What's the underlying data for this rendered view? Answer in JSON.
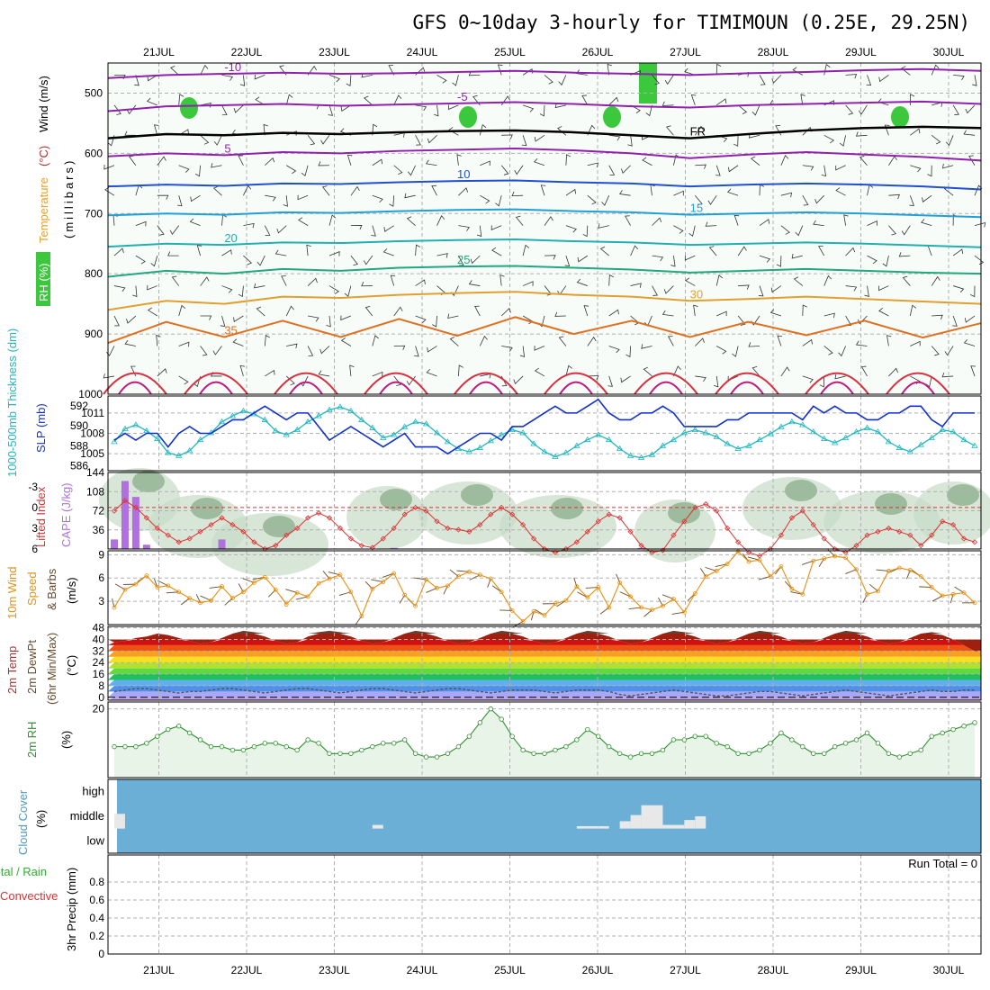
{
  "title": "GFS 0~10day 3-hourly for TIMIMOUN (0.25E, 29.25N)",
  "date_labels": [
    "21JUL",
    "22JUL",
    "23JUL",
    "24JUL",
    "25JUL",
    "26JUL",
    "27JUL",
    "28JUL",
    "29JUL",
    "30JUL"
  ],
  "colors": {
    "rh": "#3cc83c",
    "slp": "#1030d0",
    "thickness": "#20b8c0",
    "cape": "#b070e0",
    "lifted_index": "#e03030",
    "wind10": "#e89010",
    "barbs": "#6a4a2a",
    "rh2m": "#309030",
    "cloud": "#6baed6",
    "precip_total": "#30b030",
    "precip_conv": "#e03030"
  },
  "chart_data": [
    {
      "type": "heatmap",
      "panel": "upper-air",
      "ylabel_parts": [
        "RH (%)",
        "Temperature",
        " (°C)",
        "Wind (m/s)",
        "(millibars)"
      ],
      "ylim": [
        1000,
        450
      ],
      "y_ticks": [
        500,
        600,
        700,
        800,
        900,
        1000
      ],
      "isotherms": [
        {
          "label": "-10",
          "y": [
            475,
            470,
            468,
            466,
            468,
            467,
            465,
            463,
            466,
            468,
            470,
            467,
            465,
            462,
            460,
            463
          ]
        },
        {
          "label": "-5",
          "y": [
            530,
            522,
            520,
            518,
            521,
            519,
            517,
            515,
            518,
            522,
            524,
            520,
            518,
            516,
            514,
            518
          ]
        },
        {
          "label": "FR",
          "y": [
            575,
            568,
            570,
            566,
            568,
            565,
            563,
            562,
            565,
            570,
            575,
            568,
            562,
            558,
            556,
            558
          ]
        },
        {
          "label": "5",
          "y": [
            605,
            600,
            603,
            598,
            600,
            596,
            594,
            592,
            595,
            600,
            608,
            602,
            598,
            602,
            606,
            612
          ]
        },
        {
          "label": "10",
          "y": [
            655,
            652,
            654,
            650,
            651,
            648,
            646,
            645,
            648,
            650,
            655,
            652,
            650,
            652,
            655,
            660
          ]
        },
        {
          "label": "15",
          "y": [
            703,
            700,
            702,
            698,
            699,
            696,
            694,
            693,
            696,
            698,
            702,
            700,
            698,
            700,
            703,
            706
          ]
        },
        {
          "label": "20",
          "y": [
            755,
            750,
            752,
            748,
            749,
            746,
            744,
            743,
            746,
            748,
            752,
            750,
            748,
            750,
            753,
            756
          ]
        },
        {
          "label": "25",
          "y": [
            805,
            795,
            800,
            792,
            795,
            790,
            788,
            787,
            790,
            793,
            798,
            795,
            792,
            795,
            798,
            800
          ]
        },
        {
          "label": "30",
          "y": [
            860,
            845,
            850,
            838,
            840,
            835,
            832,
            830,
            835,
            838,
            845,
            842,
            838,
            842,
            846,
            850
          ]
        },
        {
          "label": "35",
          "y": [
            915,
            880,
            905,
            878,
            905,
            875,
            903,
            872,
            900,
            878,
            905,
            880,
            902,
            878,
            906,
            882
          ]
        }
      ]
    },
    {
      "type": "line",
      "panel": "slp-thickness",
      "ylabel_left": "1000-500mb Thickness (dm)",
      "ylabel_right": "SLP (mb)",
      "slp_ticks": [
        1005,
        1008,
        1011
      ],
      "thickness_ticks": [
        586,
        588,
        590,
        592
      ],
      "slp_ylim": [
        1002.5,
        1013.5
      ],
      "series": [
        {
          "quantity": "slp",
          "values": [
            1007,
            1008,
            1007,
            1008,
            1008,
            1006,
            1008,
            1009,
            1008,
            1008,
            1009,
            1010,
            1010,
            1011,
            1012,
            1011,
            1010,
            1011,
            1011,
            1009,
            1007,
            1008,
            1009,
            1008,
            1007,
            1006,
            1007,
            1008,
            1006,
            1006,
            1006,
            1005,
            1006,
            1007,
            1008,
            1008,
            1007,
            1009,
            1009,
            1010,
            1011,
            1012,
            1011,
            1011,
            1012,
            1013,
            1011,
            1010,
            1010,
            1011,
            1011,
            1012,
            1011,
            1009,
            1009,
            1009,
            1009,
            1010,
            1010,
            1011,
            1011,
            1011,
            1011,
            1011,
            1010,
            1012,
            1011,
            1012,
            1011,
            1011,
            1010,
            1010,
            1011,
            1011,
            1012,
            1012,
            1010,
            1009,
            1011,
            1011,
            1011
          ]
        },
        {
          "quantity": "thickness",
          "values": [
            588.4,
            589.7,
            590.1,
            589.5,
            588.7,
            587.3,
            587.0,
            587.5,
            588.6,
            589.3,
            590.4,
            591.0,
            591.5,
            591.2,
            590.6,
            589.5,
            589.1,
            589.6,
            590.4,
            591.0,
            591.6,
            591.9,
            591.5,
            590.6,
            589.8,
            588.8,
            589.1,
            589.9,
            590.4,
            590.2,
            589.3,
            588.4,
            587.7,
            587.4,
            587.8,
            588.5,
            589.1,
            589.6,
            589.3,
            588.2,
            587.4,
            586.9,
            587.3,
            588.0,
            588.6,
            589.1,
            588.6,
            587.7,
            587.0,
            586.8,
            587.1,
            588.0,
            588.6,
            589.3,
            589.6,
            589.3,
            588.9,
            588.2,
            587.7,
            588.0,
            588.6,
            589.2,
            589.9,
            590.4,
            590.1,
            589.4,
            588.7,
            588.3,
            588.8,
            589.4,
            589.8,
            589.4,
            588.4,
            587.8,
            587.4,
            588.1,
            588.8,
            589.6,
            589.4,
            588.6,
            588.0
          ]
        }
      ]
    },
    {
      "type": "bar",
      "panel": "li-cape",
      "ylabel_left": "Lifted Index",
      "ylabel_right": "CAPE (J/kg)",
      "cape_ticks": [
        36,
        72,
        108,
        144
      ],
      "li_ticks": [
        "-3",
        "0",
        "3",
        "6"
      ],
      "cape": [
        18,
        128,
        98,
        8,
        0,
        0,
        0,
        0,
        0,
        0,
        18,
        0,
        0,
        0,
        0,
        0,
        0,
        0,
        0,
        0,
        0,
        0,
        0,
        0,
        0,
        0,
        2,
        0,
        0,
        0,
        0,
        0,
        0,
        0,
        0,
        0,
        0,
        0,
        0,
        0,
        0,
        0,
        0,
        0,
        0,
        0,
        0,
        0,
        0,
        2,
        0,
        0,
        0,
        0,
        0,
        0,
        0,
        0,
        0,
        0,
        0,
        0,
        0,
        0,
        0,
        0,
        0,
        0,
        0,
        0,
        0,
        0,
        0,
        0,
        0,
        0,
        0,
        0,
        0,
        0,
        0
      ],
      "lifted_index": [
        0.5,
        -1.0,
        0.0,
        1.5,
        3.0,
        4.0,
        5.0,
        4.5,
        3.5,
        2.5,
        1.5,
        2.5,
        3.5,
        5.0,
        6.0,
        5.5,
        4.0,
        3.0,
        1.5,
        0.8,
        1.5,
        3.0,
        4.5,
        5.5,
        5.8,
        4.5,
        3.0,
        1.0,
        0.0,
        0.5,
        2.0,
        3.0,
        3.2,
        3.5,
        2.5,
        1.0,
        0.0,
        1.0,
        2.5,
        4.5,
        6.0,
        6.5,
        6.0,
        5.0,
        3.5,
        2.0,
        1.0,
        1.5,
        3.5,
        5.5,
        6.5,
        6.2,
        4.0,
        2.0,
        0.0,
        -0.5,
        0.5,
        3.0,
        5.0,
        6.5,
        7.0,
        6.0,
        4.0,
        1.5,
        0.5,
        2.5,
        4.5,
        6.0,
        6.5,
        5.5,
        4.0,
        3.5,
        3.0,
        3.5,
        4.0,
        5.5,
        4.0,
        2.0,
        2.5,
        4.5,
        5.0
      ]
    },
    {
      "type": "line",
      "panel": "wind10m",
      "ylabel_parts": [
        "10m Wind",
        "Speed",
        "& Barbs",
        "(m/s)"
      ],
      "ylim": [
        0,
        9.5
      ],
      "y_ticks": [
        3,
        6,
        9
      ],
      "values": [
        2.2,
        4.5,
        5.2,
        6.3,
        4.8,
        5.0,
        4.2,
        3.4,
        2.8,
        3.1,
        4.9,
        3.4,
        4.2,
        5.4,
        6.1,
        4.5,
        2.6,
        4.1,
        3.6,
        5.3,
        5.9,
        6.4,
        4.2,
        1.1,
        4.6,
        5.5,
        6.6,
        3.8,
        2.4,
        5.8,
        4.7,
        5.0,
        6.2,
        6.8,
        6.4,
        5.9,
        4.2,
        1.8,
        0.4,
        1.7,
        1.2,
        2.7,
        3.1,
        4.9,
        3.5,
        4.8,
        2.2,
        5.4,
        3.6,
        2.2,
        1.9,
        2.4,
        3.3,
        1.6,
        4.0,
        6.2,
        6.9,
        7.8,
        9.4,
        8.1,
        8.3,
        6.2,
        7.5,
        4.6,
        3.9,
        8.2,
        8.5,
        8.8,
        8.6,
        7.1,
        3.9,
        4.3,
        6.9,
        7.3,
        7.0,
        6.2,
        4.8,
        3.7,
        3.9,
        4.1,
        2.8
      ]
    },
    {
      "type": "area",
      "panel": "temp2m",
      "ylabel_parts": [
        "2m Temp",
        "2m DewPt",
        "(6hr Min/Max)",
        "(°C)"
      ],
      "ylim": [
        -2,
        49
      ],
      "y_ticks": [
        0,
        8,
        16,
        24,
        32,
        40,
        48
      ],
      "temp": [
        38,
        39,
        41,
        42,
        44,
        43,
        41,
        39,
        37,
        38,
        41,
        44,
        46,
        45,
        42,
        39,
        37,
        38,
        42,
        45,
        46,
        45,
        42,
        39,
        37,
        38,
        41,
        44,
        46,
        45,
        42,
        39,
        37,
        38,
        41,
        44,
        46,
        45,
        42,
        39,
        37,
        38,
        41,
        44,
        46,
        45,
        42,
        39,
        37,
        38,
        41,
        44,
        46,
        45,
        42,
        39,
        37,
        38,
        41,
        44,
        46,
        45,
        42,
        39,
        37,
        38,
        41,
        44,
        46,
        45,
        42,
        39,
        37,
        38,
        41,
        44,
        45,
        43,
        40,
        36,
        32
      ],
      "dewpoint": [
        4,
        5,
        6,
        6,
        5,
        4,
        3,
        4,
        4,
        5,
        6,
        6,
        5,
        4,
        3,
        4,
        5,
        6,
        6,
        5,
        4,
        3,
        4,
        5,
        6,
        6,
        5,
        4,
        3,
        4,
        5,
        6,
        6,
        5,
        4,
        3,
        4,
        5,
        5,
        5,
        4,
        3,
        4,
        5,
        5,
        5,
        4,
        2,
        1,
        2,
        3,
        4,
        5,
        4,
        3,
        2,
        1,
        1,
        2,
        3,
        4,
        4,
        3,
        2,
        1,
        2,
        3,
        4,
        5,
        4,
        3,
        2,
        1,
        2,
        3,
        4,
        5,
        4,
        4,
        5,
        5
      ]
    },
    {
      "type": "line",
      "panel": "rh2m",
      "ylabel_parts": [
        "2m RH",
        "(%)"
      ],
      "ylim": [
        0,
        22
      ],
      "y_ticks": [
        20
      ],
      "values": [
        9,
        9,
        9,
        10,
        12,
        14,
        15,
        13,
        11,
        9,
        9,
        8,
        8,
        9,
        10,
        10,
        9,
        8,
        11,
        10,
        7,
        7,
        7,
        8,
        9,
        10,
        10,
        11,
        7,
        6,
        6,
        7,
        9,
        12,
        16,
        20,
        17,
        12,
        8,
        7,
        7,
        8,
        9,
        11,
        14,
        12,
        9,
        7,
        6,
        7,
        7,
        8,
        11,
        11,
        12,
        12,
        10,
        9,
        7,
        7,
        8,
        10,
        13,
        11,
        9,
        7,
        7,
        9,
        10,
        11,
        13,
        10,
        7,
        6,
        7,
        8,
        12,
        13,
        14,
        15,
        16
      ]
    },
    {
      "type": "heatmap",
      "panel": "cloud",
      "ylabel_parts": [
        "Cloud Cover",
        "(%)"
      ],
      "levels": [
        "high",
        "middle",
        "low"
      ],
      "middle_cover": [
        {
          "from_step": 0,
          "to_step": 1,
          "fraction": 0.6
        },
        {
          "from_step": 24,
          "to_step": 25,
          "fraction": 0.15
        },
        {
          "from_step": 43,
          "to_step": 45,
          "fraction": 0.1
        },
        {
          "from_step": 45,
          "to_step": 46,
          "fraction": 0.1
        },
        {
          "from_step": 47,
          "to_step": 48,
          "fraction": 0.3
        },
        {
          "from_step": 48,
          "to_step": 49,
          "fraction": 0.55
        },
        {
          "from_step": 49,
          "to_step": 51,
          "fraction": 0.95
        },
        {
          "from_step": 51,
          "to_step": 53,
          "fraction": 0.15
        },
        {
          "from_step": 53,
          "to_step": 54,
          "fraction": 0.35
        },
        {
          "from_step": 54,
          "to_step": 55,
          "fraction": 0.5
        }
      ]
    },
    {
      "type": "bar",
      "panel": "precip",
      "ylabel_left_parts": [
        "Total / Rain",
        "Convective"
      ],
      "ylabel": "3hr Precip (mm)",
      "ylim": [
        0,
        1.0
      ],
      "y_ticks": [
        "0",
        "0.2",
        "0.4",
        "0.6",
        "0.8"
      ],
      "run_total_text": "Run Total = 0",
      "values": []
    }
  ]
}
